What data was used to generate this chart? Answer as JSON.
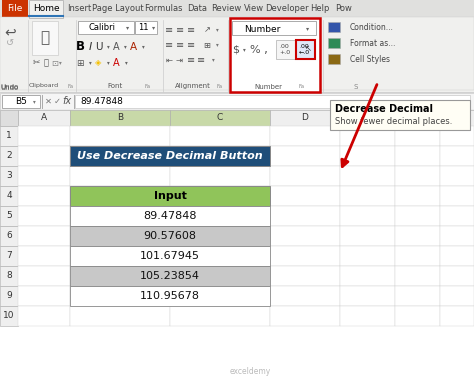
{
  "title_text": "Use Decrease Decimal Button",
  "title_bg": "#1F4E79",
  "title_color": "#FFFFFF",
  "header_text": "Input",
  "header_bg": "#90C45A",
  "data_values": [
    "89.47848",
    "90.57608",
    "101.67945",
    "105.23854",
    "110.95678"
  ],
  "row_bg_odd": "#FFFFFF",
  "row_bg_even": "#C8C8C8",
  "cell_border": "#999999",
  "tab_labels": [
    "File",
    "Home",
    "Insert",
    "Page Layout",
    "Formulas",
    "Data",
    "Review",
    "View",
    "Developer",
    "Help",
    "Pow"
  ],
  "cell_ref": "B5",
  "formula_bar_text": "89.47848",
  "tooltip_title": "Decrease Decimal",
  "tooltip_body": "Show fewer decimal places.",
  "watermark": "exceldemy",
  "bg_color": "#FFFFFF",
  "ribbon_bg": "#F0F0F0",
  "tab_bar_bg": "#E8E8E8",
  "sheet_bg": "#FFFFFF",
  "col_hdr_bg": "#EFEFEF",
  "col_hdr_selected": "#C8D9A8",
  "row_hdr_bg": "#EFEFEF",
  "grid_color": "#D0D0D0",
  "number_section_border": "#CC0000",
  "decrease_btn_border": "#CC0000",
  "arrow_color": "#CC0000",
  "tooltip_bg": "#FFFEF5",
  "tooltip_border": "#999999"
}
